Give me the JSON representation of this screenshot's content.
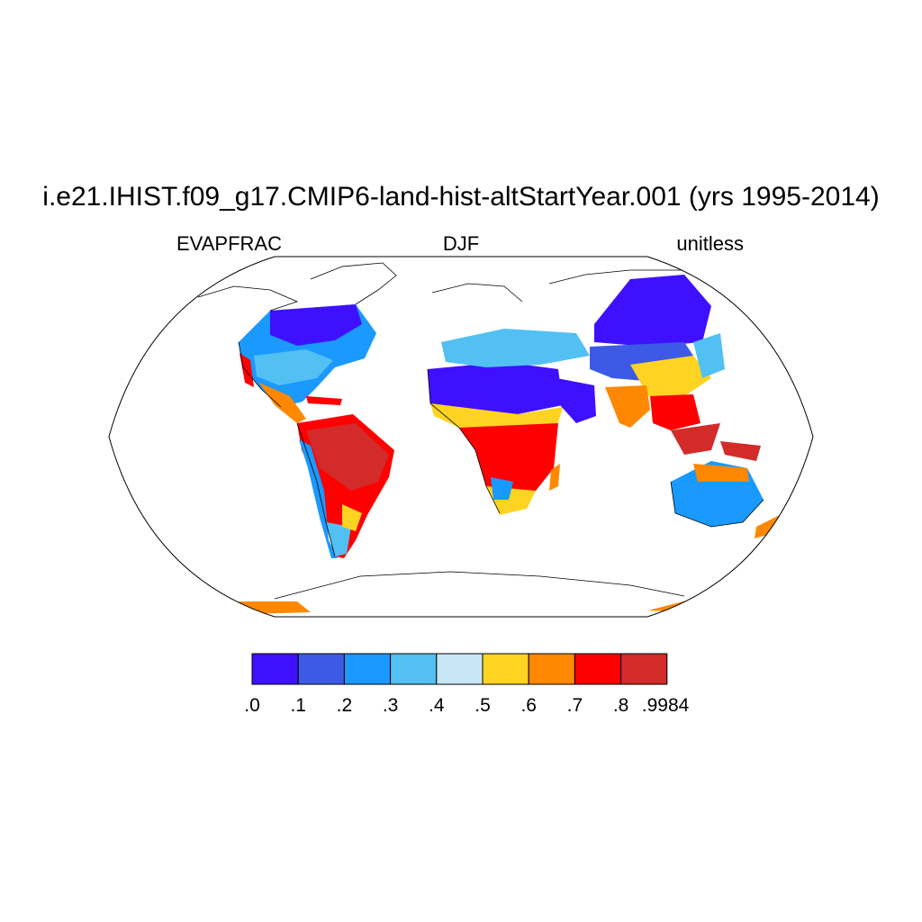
{
  "title": "i.e21.IHIST.f09_g17.CMIP6-land-hist-altStartYear.001 (yrs 1995-2014)",
  "subtitle_left": "EVAPFRAC",
  "subtitle_center": "DJF",
  "subtitle_right": "unitless",
  "colorbar": {
    "colors": [
      "#3f10ff",
      "#3c5ae6",
      "#1a99ff",
      "#52c0f2",
      "#c7e6f5",
      "#ffd321",
      "#ff8800",
      "#ff0000",
      "#d32a2a"
    ],
    "labels": [
      ".0",
      ".1",
      ".2",
      ".3",
      ".4",
      ".5",
      ".6",
      ".7",
      ".8",
      ".9984"
    ]
  },
  "map": {
    "projection": "Robinson",
    "ocean_color": "#ffffff",
    "coastline_color": "#000000"
  }
}
